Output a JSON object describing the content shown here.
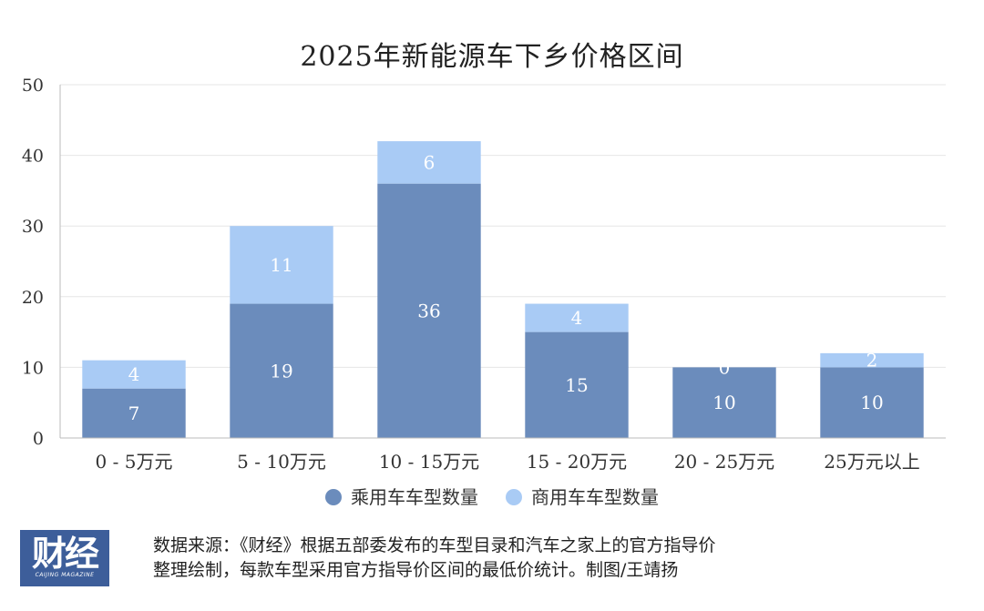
{
  "chart_data": {
    "type": "bar",
    "stacked": true,
    "title": "2025年新能源车下乡价格区间",
    "categories": [
      "0 - 5万元",
      "5 - 10万元",
      "10 - 15万元",
      "15 - 20万元",
      "20 - 25万元",
      "25万元以上"
    ],
    "series": [
      {
        "name": "乘用车车型数量",
        "values": [
          7,
          19,
          36,
          15,
          10,
          10
        ]
      },
      {
        "name": "商用车车型数量",
        "values": [
          4,
          11,
          6,
          4,
          0,
          2
        ]
      }
    ],
    "ylim": [
      0,
      50
    ],
    "yticks": [
      0,
      10,
      20,
      30,
      40,
      50
    ],
    "grid": true,
    "legend": "bottom",
    "colors": {
      "series0": "#6b8cbc",
      "series1": "#a9cbf5",
      "grid": "#e6e6e6",
      "axis": "#bbbbbb"
    }
  },
  "footer": {
    "logo_text": "财经",
    "logo_sub": "CAIJING MAGAZINE",
    "source_line1": "数据来源：《财经》根据五部委发布的车型目录和汽车之家上的官方指导价",
    "source_line2": "整理绘制，每款车型采用官方指导价区间的最低价统计。制图/王靖扬"
  }
}
